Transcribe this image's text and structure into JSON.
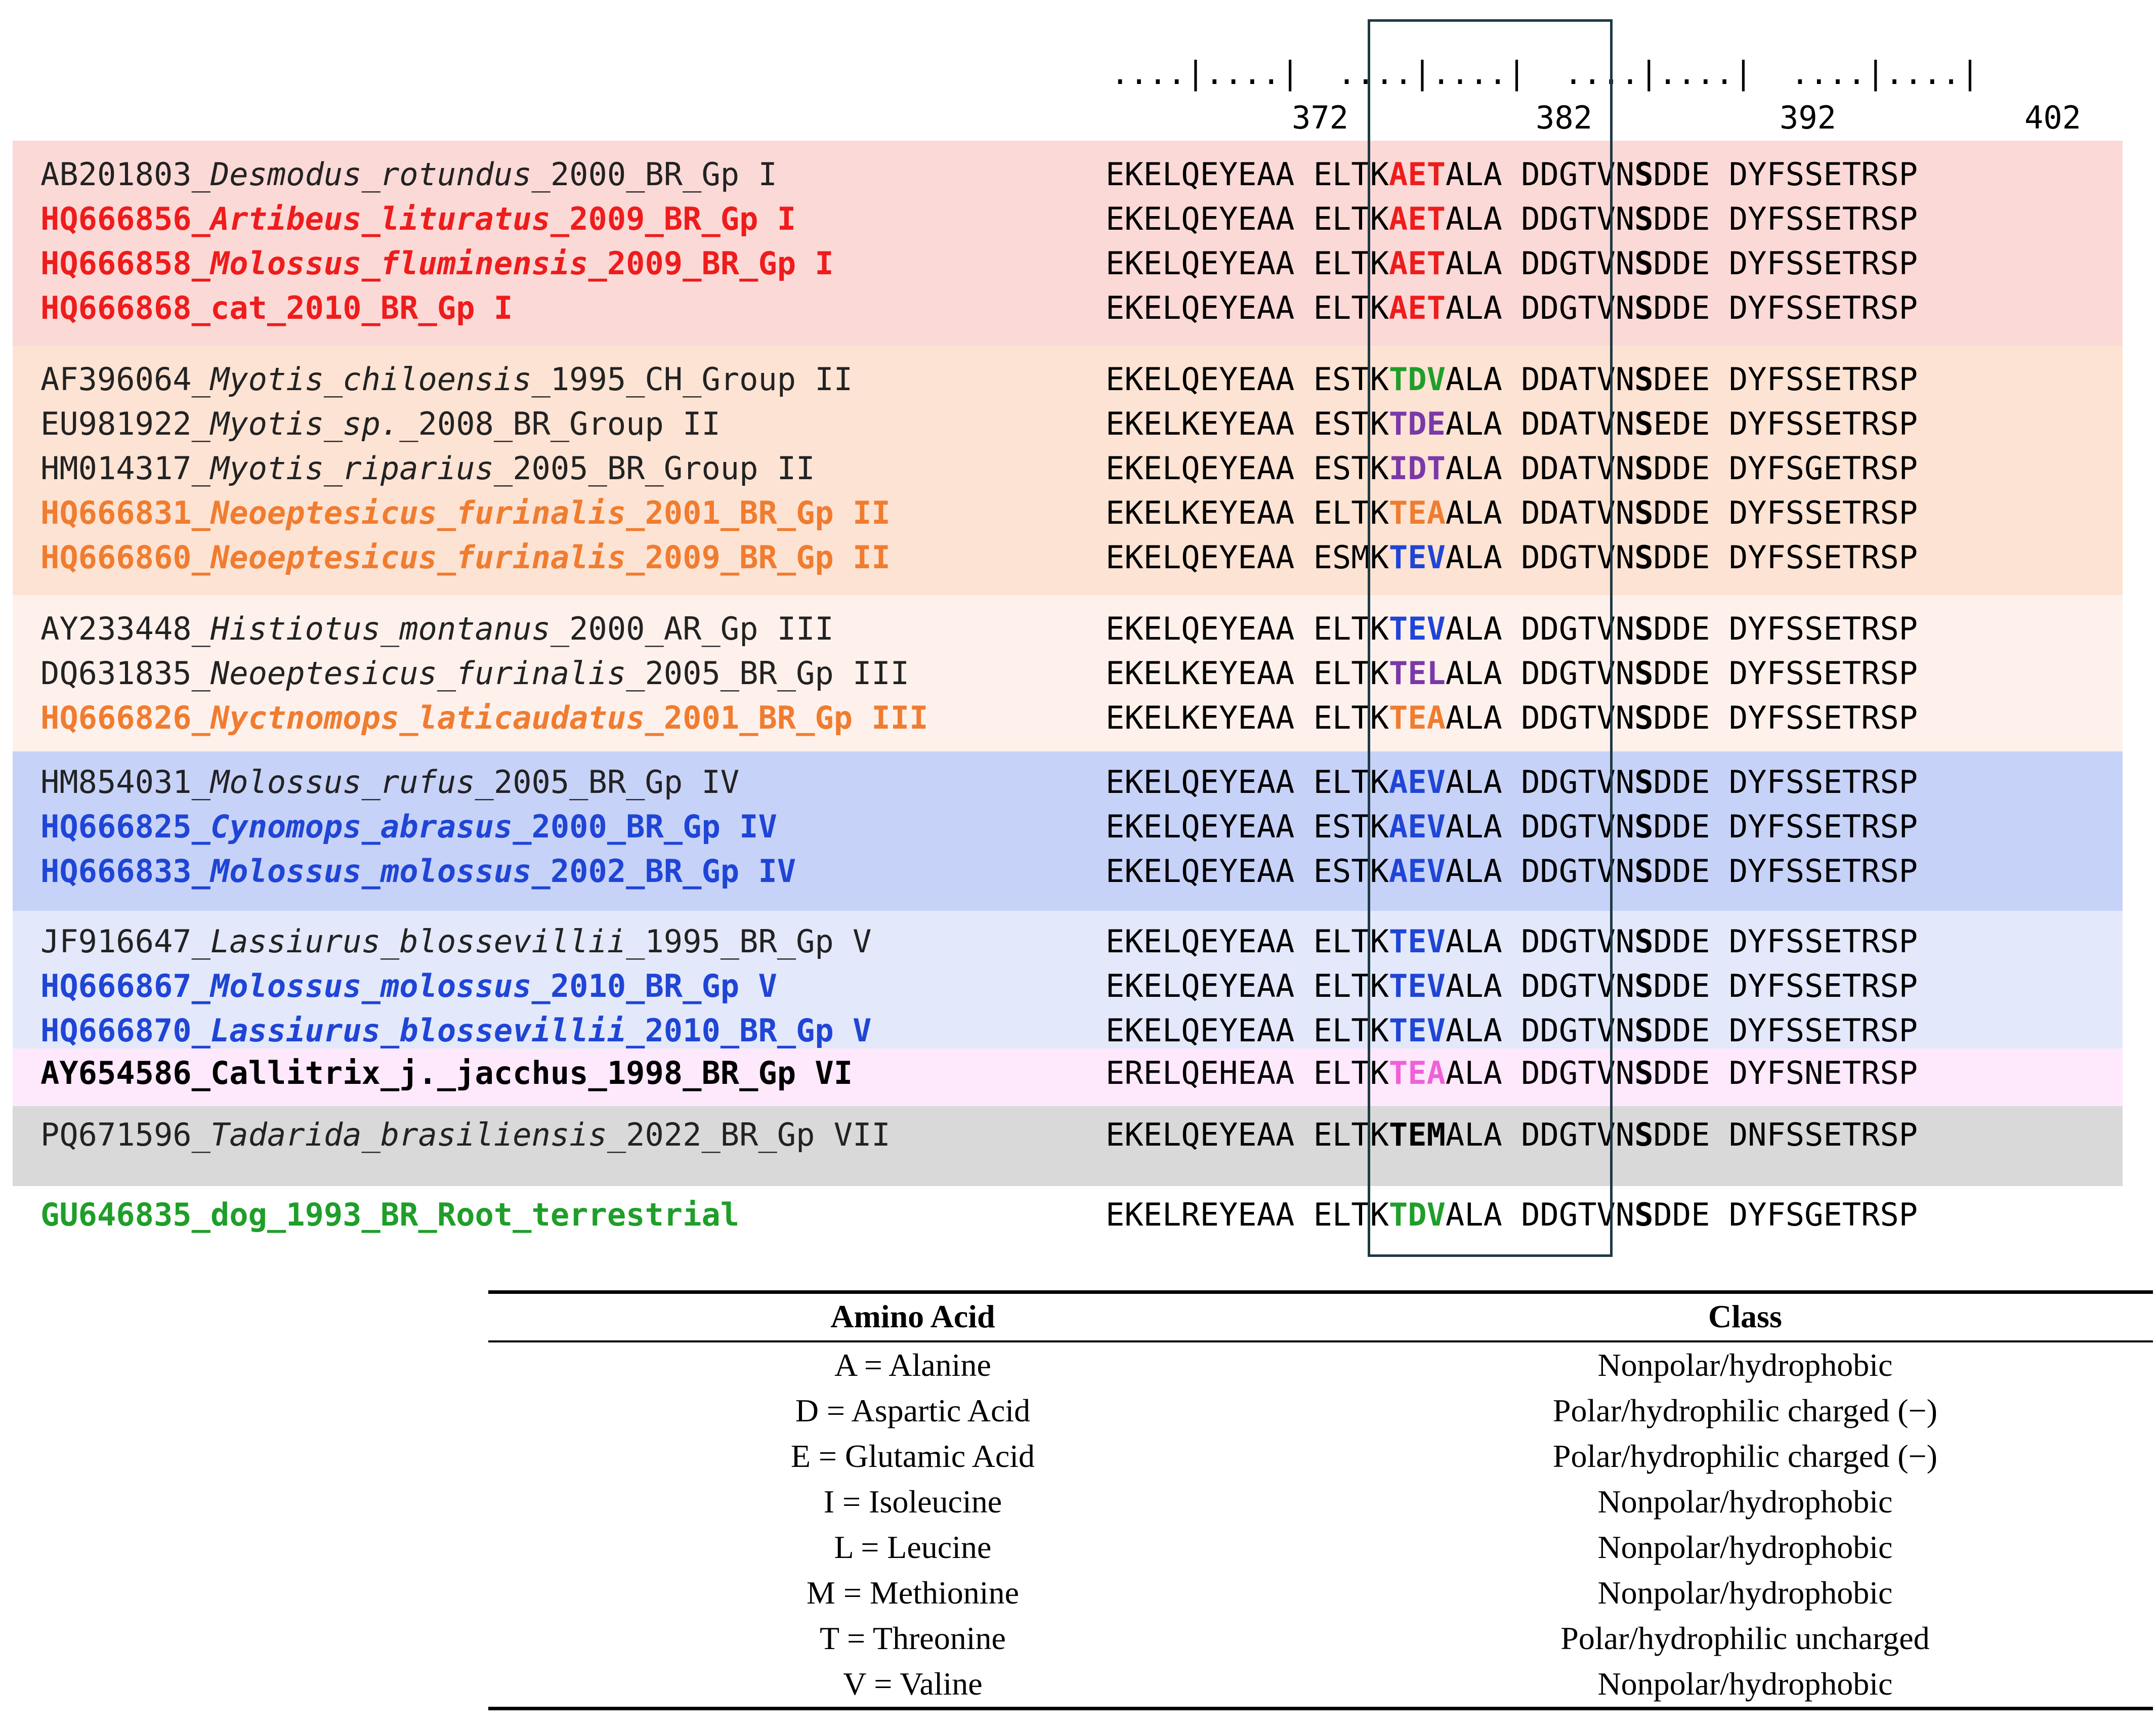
{
  "ruler": {
    "dots": "....|....|  ....|....|  ....|....|  ....|....|",
    "numbers": [
      "372",
      "382",
      "392",
      "402"
    ]
  },
  "colors": {
    "red": "#ee1c1c",
    "orange": "#f07c30",
    "blue": "#1f45d6",
    "green": "#1f9e2a",
    "purple": "#7a38a8",
    "magenta": "#f060d8",
    "black": "#000000",
    "text_default": "#222222"
  },
  "groups": [
    {
      "name": "Gp I",
      "bg": "#fbd9d7",
      "rows": [
        {
          "acc": "AB201803_",
          "species": "Desmodus_rotundus",
          "rest": "_2000_BR_Gp I",
          "bold": false,
          "color": "#222222",
          "seq": [
            {
              "t": "EKELQEYEAA ELTK"
            },
            {
              "t": "AET",
              "b": true,
              "c": "#ee1c1c"
            },
            {
              "t": "ALA DDGTVN"
            },
            {
              "t": "S",
              "b": true
            },
            {
              "t": "DDE DYFSSETRSP"
            }
          ]
        },
        {
          "acc": "HQ666856_",
          "species": "Artibeus_lituratus",
          "rest": "_2009_BR_Gp I",
          "bold": true,
          "color": "#ee1c1c",
          "seq": [
            {
              "t": "EKELQEYEAA ELTK"
            },
            {
              "t": "AET",
              "b": true,
              "c": "#ee1c1c"
            },
            {
              "t": "ALA DDGTVN"
            },
            {
              "t": "S",
              "b": true
            },
            {
              "t": "DDE DYFSSETRSP"
            }
          ]
        },
        {
          "acc": "HQ666858_",
          "species": "Molossus_fluminensis",
          "rest": "_2009_BR_Gp I",
          "bold": true,
          "color": "#ee1c1c",
          "seq": [
            {
              "t": "EKELQEYEAA ELTK"
            },
            {
              "t": "AET",
              "b": true,
              "c": "#ee1c1c"
            },
            {
              "t": "ALA DDGTVN"
            },
            {
              "t": "S",
              "b": true
            },
            {
              "t": "DDE DYFSSETRSP"
            }
          ]
        },
        {
          "acc": "HQ666868_cat_2010_BR_Gp I",
          "species": "",
          "rest": "",
          "bold": true,
          "color": "#ee1c1c",
          "seq": [
            {
              "t": "EKELQEYEAA ELTK"
            },
            {
              "t": "AET",
              "b": true,
              "c": "#ee1c1c"
            },
            {
              "t": "ALA DDGTVN"
            },
            {
              "t": "S",
              "b": true
            },
            {
              "t": "DDE DYFSSETRSP"
            }
          ]
        }
      ]
    },
    {
      "name": "Group II",
      "bg": "#fde3d3",
      "rows": [
        {
          "acc": "AF396064_",
          "species": "Myotis_chiloensis",
          "rest": "_1995_CH_Group II",
          "bold": false,
          "color": "#222222",
          "seq": [
            {
              "t": "EKELQEYEAA ESTK"
            },
            {
              "t": "TDV",
              "b": true,
              "c": "#1f9e2a"
            },
            {
              "t": "ALA DDATVN"
            },
            {
              "t": "S",
              "b": true
            },
            {
              "t": "DEE DYFSSETRSP"
            }
          ]
        },
        {
          "acc": "EU981922_",
          "species": "Myotis_sp.",
          "rest": "_2008_BR_Group II",
          "bold": false,
          "color": "#222222",
          "seq": [
            {
              "t": "EKELKEYEAA ESTK"
            },
            {
              "t": "TDE",
              "b": true,
              "c": "#7a38a8"
            },
            {
              "t": "ALA DDATVN"
            },
            {
              "t": "S",
              "b": true
            },
            {
              "t": "EDE DYFSSETRSP"
            }
          ]
        },
        {
          "acc": "HM014317_",
          "species": "Myotis_riparius",
          "rest": "_2005_BR_Group II",
          "bold": false,
          "color": "#222222",
          "seq": [
            {
              "t": "EKELQEYEAA ESTK"
            },
            {
              "t": "IDT",
              "b": true,
              "c": "#7a38a8"
            },
            {
              "t": "ALA DDATVN"
            },
            {
              "t": "S",
              "b": true
            },
            {
              "t": "DDE DYFSGETRSP"
            }
          ]
        },
        {
          "acc": "HQ666831_",
          "species": "Neoeptesicus_furinalis",
          "rest": "_2001_BR_Gp II",
          "bold": true,
          "color": "#f07c30",
          "seq": [
            {
              "t": "EKELKEYEAA ELTK"
            },
            {
              "t": "TEA",
              "b": true,
              "c": "#f07c30"
            },
            {
              "t": "ALA DDATVN"
            },
            {
              "t": "S",
              "b": true
            },
            {
              "t": "DDE DYFSSETRSP"
            }
          ]
        },
        {
          "acc": "HQ666860_",
          "species": "Neoeptesicus_furinalis",
          "rest": "_2009_BR_Gp II",
          "bold": true,
          "color": "#f07c30",
          "seq": [
            {
              "t": "EKELQEYEAA ESMK"
            },
            {
              "t": "TEV",
              "b": true,
              "c": "#1f45d6"
            },
            {
              "t": "ALA DDGTVN"
            },
            {
              "t": "S",
              "b": true
            },
            {
              "t": "DDE DYFSSETRSP"
            }
          ]
        }
      ]
    },
    {
      "name": "Gp III",
      "bg": "#fef1ec",
      "rows": [
        {
          "acc": "AY233448_",
          "species": "Histiotus_montanus",
          "rest": "_2000_AR_Gp III",
          "bold": false,
          "color": "#222222",
          "seq": [
            {
              "t": "EKELQEYEAA ELTK"
            },
            {
              "t": "TEV",
              "b": true,
              "c": "#1f45d6"
            },
            {
              "t": "ALA DDGTVN"
            },
            {
              "t": "S",
              "b": true
            },
            {
              "t": "DDE DYFSSETRSP"
            }
          ]
        },
        {
          "acc": "DQ631835_",
          "species": "Neoeptesicus_furinalis",
          "rest": "_2005_BR_Gp III",
          "bold": false,
          "color": "#222222",
          "seq": [
            {
              "t": "EKELKEYEAA ELTK"
            },
            {
              "t": "TEL",
              "b": true,
              "c": "#7a38a8"
            },
            {
              "t": "ALA DDGTVN"
            },
            {
              "t": "S",
              "b": true
            },
            {
              "t": "DDE DYFSSETRSP"
            }
          ]
        },
        {
          "acc": "HQ666826_",
          "species": "Nyctnomops_laticaudatus",
          "rest": "_2001_BR_Gp III",
          "bold": true,
          "color": "#f07c30",
          "seq": [
            {
              "t": "EKELKEYEAA ELTK"
            },
            {
              "t": "TEA",
              "b": true,
              "c": "#f07c30"
            },
            {
              "t": "ALA DDGTVN"
            },
            {
              "t": "S",
              "b": true
            },
            {
              "t": "DDE DYFSSETRSP"
            }
          ]
        }
      ]
    },
    {
      "name": "Gp IV",
      "bg": "#c7d2f8",
      "rows": [
        {
          "acc": "HM854031_",
          "species": "Molossus_rufus",
          "rest": "_2005_BR_Gp IV",
          "bold": false,
          "color": "#222222",
          "seq": [
            {
              "t": "EKELQEYEAA ELTK"
            },
            {
              "t": "AEV",
              "b": true,
              "c": "#1f45d6"
            },
            {
              "t": "ALA DDGTVN"
            },
            {
              "t": "S",
              "b": true
            },
            {
              "t": "DDE DYFSSETRSP"
            }
          ]
        },
        {
          "acc": "HQ666825_",
          "species": "Cynomops_abrasus",
          "rest": "_2000_BR_Gp IV",
          "bold": true,
          "color": "#1f45d6",
          "seq": [
            {
              "t": "EKELQEYEAA ESTK"
            },
            {
              "t": "AEV",
              "b": true,
              "c": "#1f45d6"
            },
            {
              "t": "ALA DDGTVN"
            },
            {
              "t": "S",
              "b": true
            },
            {
              "t": "DDE DYFSSETRSP"
            }
          ]
        },
        {
          "acc": "HQ666833_",
          "species": "Molossus_molossus",
          "rest": "_2002_BR_Gp IV",
          "bold": true,
          "color": "#1f45d6",
          "seq": [
            {
              "t": "EKELQEYEAA ESTK"
            },
            {
              "t": "AEV",
              "b": true,
              "c": "#1f45d6"
            },
            {
              "t": "ALA DDGTVN"
            },
            {
              "t": "S",
              "b": true
            },
            {
              "t": "DDE DYFSSETRSP"
            }
          ]
        }
      ]
    },
    {
      "name": "Gp V",
      "bg": "#e3e8fb",
      "rows": [
        {
          "acc": "JF916647_",
          "species": "Lassiurus_blossevillii",
          "rest": "_1995_BR_Gp V",
          "bold": false,
          "color": "#222222",
          "seq": [
            {
              "t": "EKELQEYEAA ELTK"
            },
            {
              "t": "TEV",
              "b": true,
              "c": "#1f45d6"
            },
            {
              "t": "ALA DDGTVN"
            },
            {
              "t": "S",
              "b": true
            },
            {
              "t": "DDE DYFSSETRSP"
            }
          ]
        },
        {
          "acc": "HQ666867_",
          "species": "Molossus_molossus",
          "rest": "_2010_BR_Gp V",
          "bold": true,
          "color": "#1f45d6",
          "seq": [
            {
              "t": "EKELQEYEAA ELTK"
            },
            {
              "t": "TEV",
              "b": true,
              "c": "#1f45d6"
            },
            {
              "t": "ALA DDGTVN"
            },
            {
              "t": "S",
              "b": true
            },
            {
              "t": "DDE DYFSSETRSP"
            }
          ]
        },
        {
          "acc": "HQ666870_",
          "species": "Lassiurus_blossevillii",
          "rest": "_2010_BR_Gp V",
          "bold": true,
          "color": "#1f45d6",
          "seq": [
            {
              "t": "EKELQEYEAA ELTK"
            },
            {
              "t": "TEV",
              "b": true,
              "c": "#1f45d6"
            },
            {
              "t": "ALA DDGTVN"
            },
            {
              "t": "S",
              "b": true
            },
            {
              "t": "DDE DYFSSETRSP"
            }
          ]
        }
      ]
    },
    {
      "name": "Gp VI",
      "bg": "#fde8fc",
      "rows": [
        {
          "acc": "AY654586_Callitrix_j._jacchus_1998_BR_Gp VI",
          "species": "",
          "rest": "",
          "bold": true,
          "color": "#000000",
          "seq": [
            {
              "t": "ERELQEHEAA ELTK"
            },
            {
              "t": "TEA",
              "b": true,
              "c": "#f060d8"
            },
            {
              "t": "ALA DDGTVN"
            },
            {
              "t": "S",
              "b": true
            },
            {
              "t": "DDE DYFSNETRSP"
            }
          ]
        }
      ]
    },
    {
      "name": "Gp VII",
      "bg": "#d9d9d9",
      "rows": [
        {
          "acc": "PQ671596_",
          "species": "Tadarida_brasiliensis",
          "rest": "_2022_BR_Gp VII",
          "bold": false,
          "color": "#222222",
          "seq": [
            {
              "t": "EKELQEYEAA ELTK"
            },
            {
              "t": "TEM",
              "b": true,
              "c": "#000000"
            },
            {
              "t": "ALA DDGTVN"
            },
            {
              "t": "S",
              "b": true
            },
            {
              "t": "DDE DNFSSETRSP"
            }
          ]
        }
      ]
    },
    {
      "name": "Root",
      "bg": "#ffffff",
      "rows": [
        {
          "acc": "GU646835_dog_1993_BR_Root_terrestrial",
          "species": "",
          "rest": "",
          "bold": true,
          "color": "#1f9e2a",
          "seq": [
            {
              "t": "EKELREYEAA ELTK"
            },
            {
              "t": "TDV",
              "b": true,
              "c": "#1f9e2a"
            },
            {
              "t": "ALA DDGTVN"
            },
            {
              "t": "S",
              "b": true
            },
            {
              "t": "DDE DYFSGETRSP"
            }
          ]
        }
      ]
    }
  ],
  "amino_table": {
    "headers": [
      "Amino Acid",
      "Class"
    ],
    "rows": [
      [
        "A = Alanine",
        "Nonpolar/hydrophobic"
      ],
      [
        "D = Aspartic Acid",
        "Polar/hydrophilic charged (−)"
      ],
      [
        "E = Glutamic Acid",
        "Polar/hydrophilic charged (−)"
      ],
      [
        "I = Isoleucine",
        "Nonpolar/hydrophobic"
      ],
      [
        "L = Leucine",
        "Nonpolar/hydrophobic"
      ],
      [
        "M = Methionine",
        "Nonpolar/hydrophobic"
      ],
      [
        "T = Threonine",
        "Polar/hydrophilic uncharged"
      ],
      [
        "V = Valine",
        "Nonpolar/hydrophobic"
      ]
    ]
  }
}
